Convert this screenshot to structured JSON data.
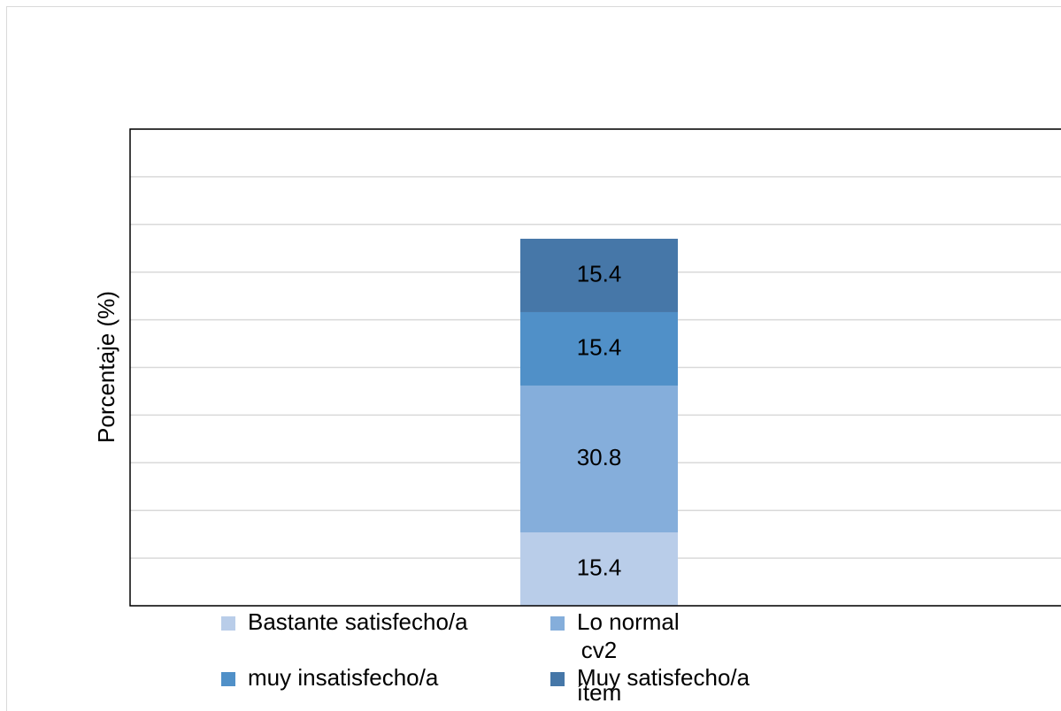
{
  "chart_data": {
    "type": "stacked_bar",
    "categories": [
      "cv2"
    ],
    "x_label": "ítem",
    "y_label": "Porcentaje (%)",
    "series": [
      {
        "name": "Bastante satisfecho/a",
        "color": "#b9cde9",
        "values": [
          15.4
        ]
      },
      {
        "name": "Lo normal",
        "color": "#85aedb",
        "values": [
          30.8
        ]
      },
      {
        "name": "muy insatisfecho/a",
        "color": "#5090c8",
        "values": [
          15.4
        ]
      },
      {
        "name": "Muy satisfecho/a",
        "color": "#4677a8",
        "values": [
          15.4
        ]
      }
    ],
    "ylim": [
      0,
      100
    ],
    "yticks": [
      0,
      10,
      20,
      30,
      40,
      50,
      60,
      70,
      80,
      90,
      100
    ],
    "grid": true
  }
}
